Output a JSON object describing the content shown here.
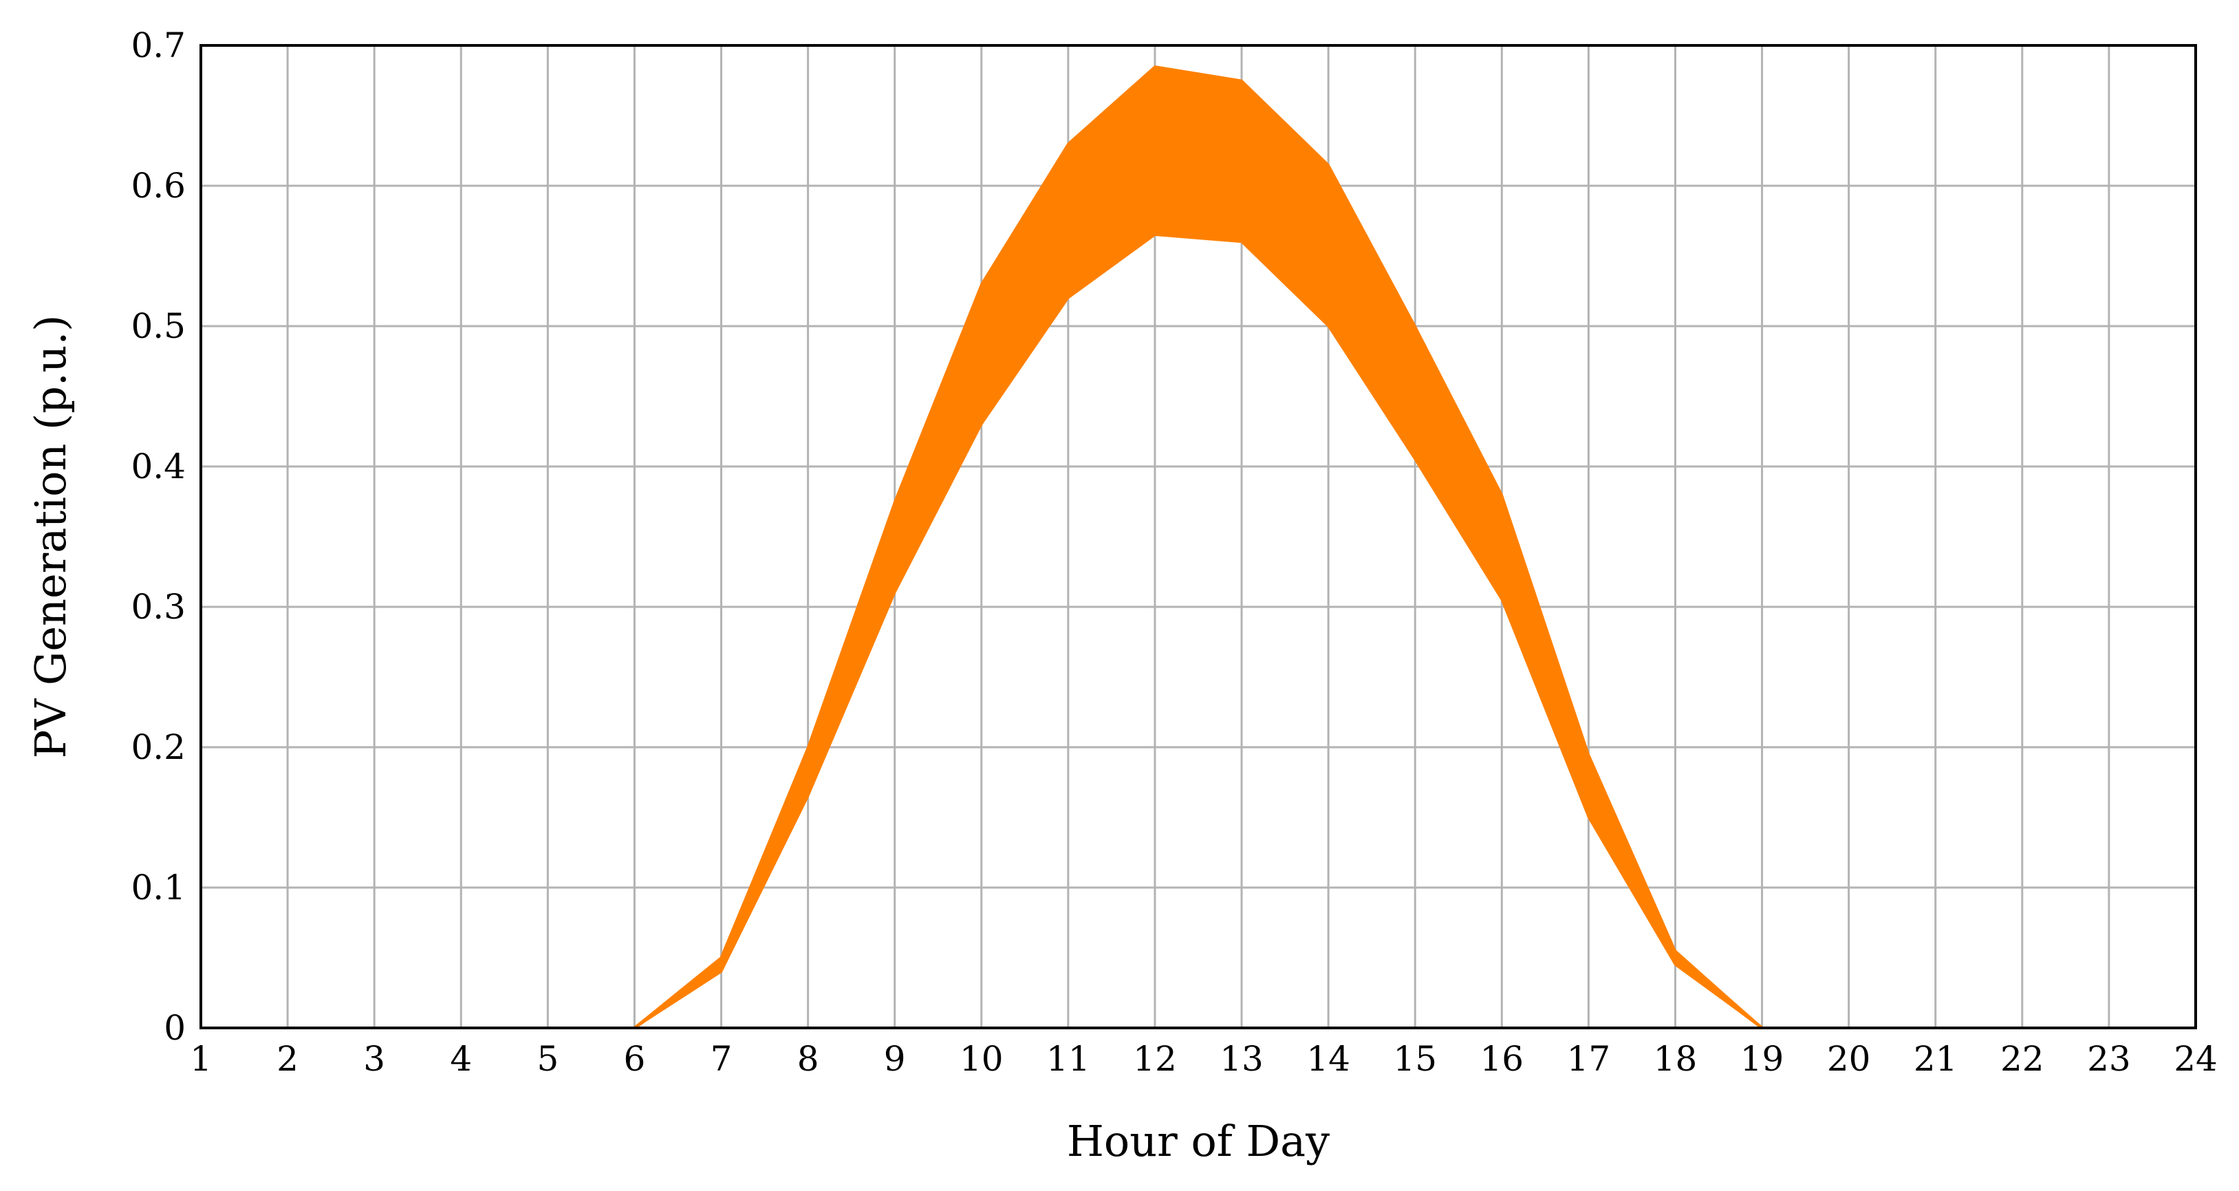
{
  "chart_data": {
    "type": "line",
    "title": "",
    "xlabel": "Hour of Day",
    "ylabel": "PV Generation (p.u.)",
    "xlim": [
      1,
      24
    ],
    "ylim": [
      0,
      0.7
    ],
    "grid": true,
    "line_color": "#ff8000",
    "x_ticks": [
      "1",
      "2",
      "3",
      "4",
      "5",
      "6",
      "7",
      "8",
      "9",
      "10",
      "11",
      "12",
      "13",
      "14",
      "15",
      "16",
      "17",
      "18",
      "19",
      "20",
      "21",
      "22",
      "23",
      "24"
    ],
    "y_ticks": [
      "0",
      "0.1",
      "0.2",
      "0.3",
      "0.4",
      "0.5",
      "0.6",
      "0.7"
    ],
    "x": [
      1,
      2,
      3,
      4,
      5,
      6,
      7,
      8,
      9,
      10,
      11,
      12,
      13,
      14,
      15,
      16,
      17,
      18,
      19,
      20,
      21,
      22,
      23,
      24
    ],
    "envelope": {
      "lower": [
        0,
        0,
        0,
        0,
        0,
        0,
        0.04,
        0.165,
        0.31,
        0.43,
        0.52,
        0.565,
        0.56,
        0.5,
        0.405,
        0.305,
        0.15,
        0.045,
        0,
        0,
        0,
        0,
        0,
        0
      ],
      "upper": [
        0,
        0,
        0,
        0,
        0,
        0,
        0.05,
        0.2,
        0.375,
        0.53,
        0.63,
        0.685,
        0.675,
        0.615,
        0.5,
        0.38,
        0.195,
        0.055,
        0,
        0,
        0,
        0,
        0,
        0
      ]
    },
    "series": [
      {
        "values": [
          0,
          0,
          0,
          0,
          0,
          0,
          0.042,
          0.168,
          0.315,
          0.435,
          0.525,
          0.57,
          0.565,
          0.505,
          0.41,
          0.31,
          0.155,
          0.046,
          0,
          0,
          0,
          0,
          0,
          0
        ]
      },
      {
        "values": [
          0,
          0,
          0,
          0,
          0,
          0,
          0.044,
          0.175,
          0.325,
          0.45,
          0.545,
          0.59,
          0.58,
          0.52,
          0.425,
          0.32,
          0.162,
          0.048,
          0,
          0,
          0,
          0,
          0,
          0
        ]
      },
      {
        "values": [
          0,
          0,
          0,
          0,
          0,
          0,
          0.045,
          0.18,
          0.335,
          0.465,
          0.56,
          0.605,
          0.595,
          0.535,
          0.44,
          0.33,
          0.168,
          0.049,
          0,
          0,
          0,
          0,
          0,
          0
        ]
      },
      {
        "values": [
          0,
          0,
          0,
          0,
          0,
          0,
          0.046,
          0.185,
          0.345,
          0.48,
          0.575,
          0.62,
          0.61,
          0.55,
          0.455,
          0.342,
          0.175,
          0.05,
          0,
          0,
          0,
          0,
          0,
          0
        ]
      },
      {
        "values": [
          0,
          0,
          0,
          0,
          0,
          0,
          0.047,
          0.188,
          0.352,
          0.492,
          0.588,
          0.635,
          0.628,
          0.565,
          0.465,
          0.352,
          0.18,
          0.051,
          0,
          0,
          0,
          0,
          0,
          0
        ]
      },
      {
        "values": [
          0,
          0,
          0,
          0,
          0,
          0,
          0.048,
          0.192,
          0.36,
          0.505,
          0.6,
          0.65,
          0.64,
          0.58,
          0.475,
          0.36,
          0.185,
          0.052,
          0,
          0,
          0,
          0,
          0,
          0
        ]
      },
      {
        "values": [
          0,
          0,
          0,
          0,
          0,
          0,
          0.049,
          0.195,
          0.366,
          0.515,
          0.612,
          0.662,
          0.652,
          0.592,
          0.485,
          0.368,
          0.189,
          0.053,
          0,
          0,
          0,
          0,
          0,
          0
        ]
      },
      {
        "values": [
          0,
          0,
          0,
          0,
          0,
          0,
          0.05,
          0.199,
          0.372,
          0.525,
          0.625,
          0.678,
          0.668,
          0.608,
          0.495,
          0.376,
          0.193,
          0.054,
          0,
          0,
          0,
          0,
          0,
          0
        ]
      },
      {
        "values": [
          0,
          0,
          0,
          0,
          0,
          0,
          0.043,
          0.172,
          0.32,
          0.445,
          0.56,
          0.64,
          0.6,
          0.515,
          0.42,
          0.315,
          0.158,
          0.047,
          0,
          0,
          0,
          0,
          0,
          0
        ]
      },
      {
        "values": [
          0,
          0,
          0,
          0,
          0,
          0,
          0.047,
          0.19,
          0.355,
          0.5,
          0.55,
          0.6,
          0.66,
          0.56,
          0.45,
          0.35,
          0.178,
          0.05,
          0,
          0,
          0,
          0,
          0,
          0
        ]
      }
    ]
  }
}
